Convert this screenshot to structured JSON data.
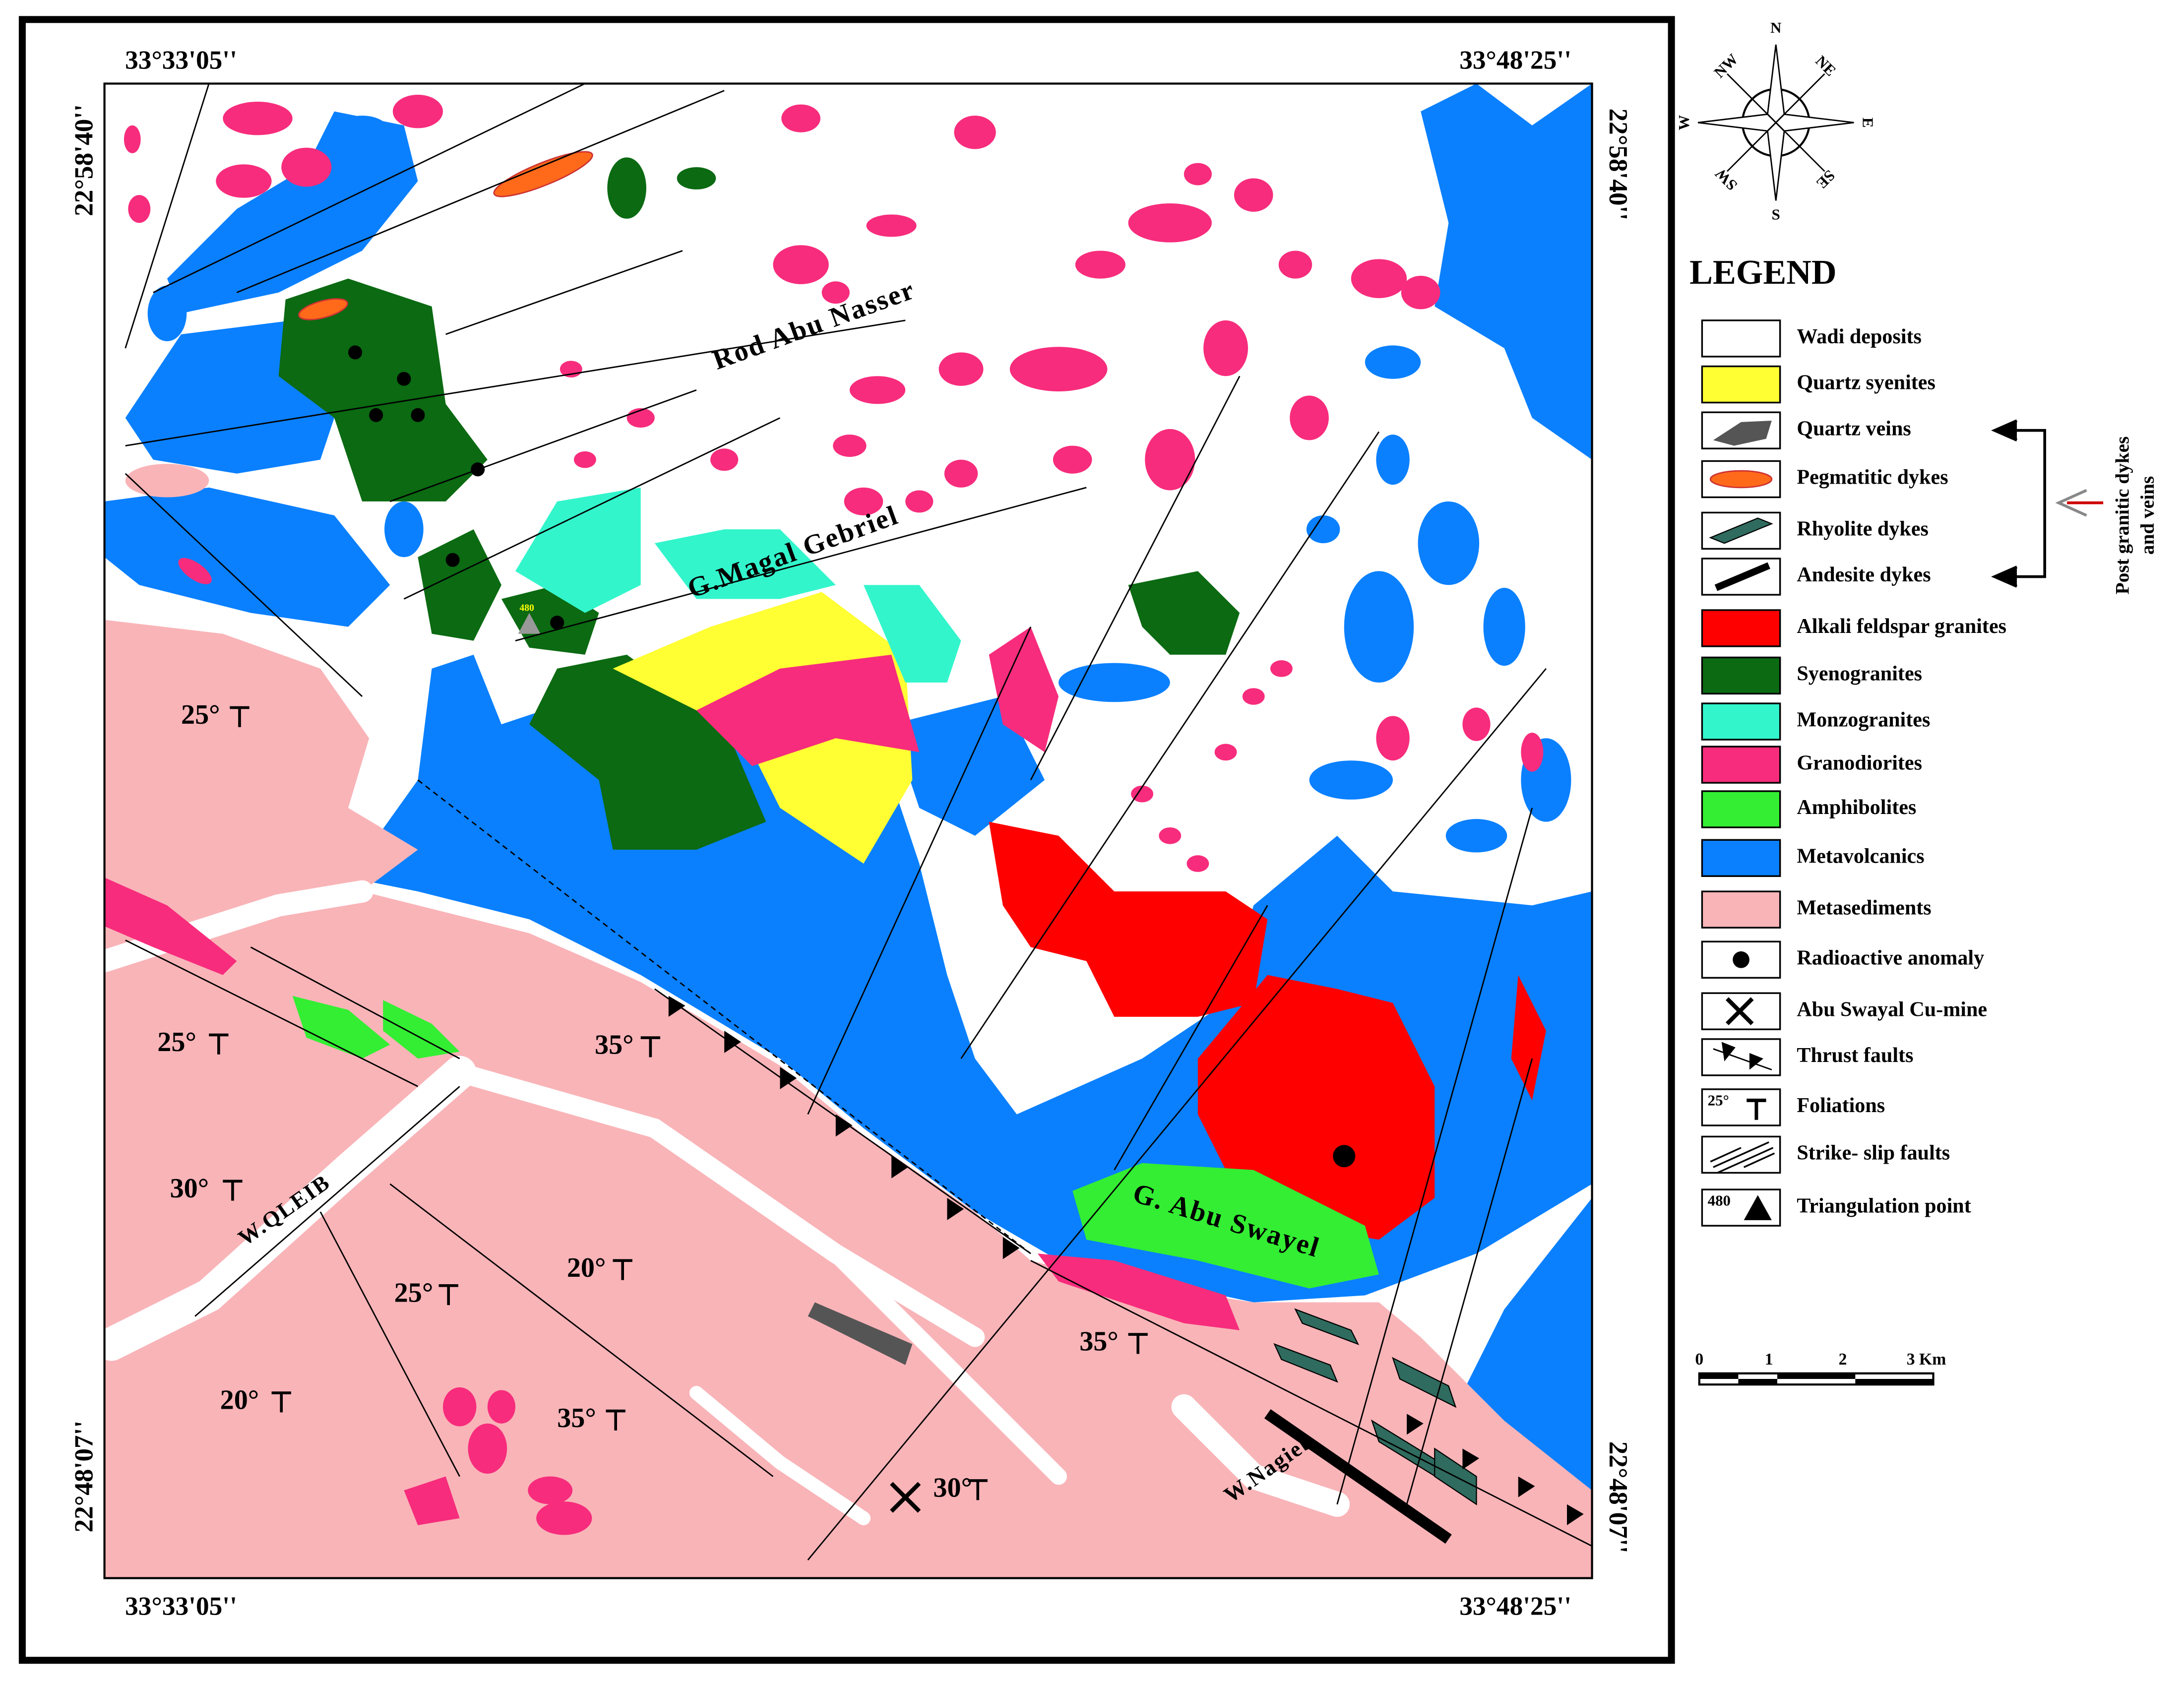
{
  "map": {
    "coordinates": {
      "top_left": "33°33'05''",
      "top_right": "33°48'25''",
      "bottom_left": "33°33'05''",
      "bottom_right": "33°48'25''",
      "left_top": "22°58'40''",
      "left_bottom": "22°48'07''",
      "right_top": "22°58'40''",
      "right_bottom": "22°48'07''"
    },
    "place_labels": [
      "Rod Abu Nasser",
      "G.Magal Gebriel",
      "G. Abu Swayel",
      "W.QLEIB",
      "W.Nagieb"
    ],
    "foliations": [
      "25°",
      "25°",
      "30°",
      "25°",
      "20°",
      "20°",
      "35°",
      "35°",
      "35°",
      "30°"
    ],
    "triangulation_point": "480"
  },
  "compass": [
    "N",
    "NE",
    "E",
    "SE",
    "S",
    "SW",
    "W",
    "NW"
  ],
  "legend": {
    "title": "LEGEND",
    "items": [
      {
        "label": "Wadi deposits",
        "color": "#ffffff"
      },
      {
        "label": "Quartz syenites",
        "color": "#ffff33"
      },
      {
        "label": "Quartz veins",
        "color": "#ffffff"
      },
      {
        "label": "Pegmatitic dykes",
        "color": "#ffffff"
      },
      {
        "label": "Rhyolite dykes",
        "color": "#ffffff"
      },
      {
        "label": "Andesite dykes",
        "color": "#ffffff"
      },
      {
        "label": "Alkali feldspar granites",
        "color": "#ff0000"
      },
      {
        "label": "Syenogranites",
        "color": "#0b6a12"
      },
      {
        "label": "Monzogranites",
        "color": "#33f5cc"
      },
      {
        "label": "Granodiorites",
        "color": "#f72c7c"
      },
      {
        "label": "Amphibolites",
        "color": "#33ee33"
      },
      {
        "label": "Metavolcanics",
        "color": "#0a80ff"
      },
      {
        "label": "Metasediments",
        "color": "#f9b4b8"
      },
      {
        "label": "Radioactive anomaly",
        "color": "#ffffff"
      },
      {
        "label": "Abu Swayal Cu-mine",
        "color": "#ffffff"
      },
      {
        "label": "Thrust faults",
        "color": "#ffffff"
      },
      {
        "label": "Foliations",
        "color": "#ffffff",
        "symbol_text": "25°"
      },
      {
        "label": "Strike- slip faults",
        "color": "#ffffff"
      },
      {
        "label": "Triangulation point",
        "color": "#ffffff",
        "symbol_text": "480"
      }
    ],
    "bracket_label": [
      "Post granitic dykes",
      "and veins"
    ]
  },
  "scale_bar": {
    "labels": [
      "0",
      "1",
      "2",
      "3 Km"
    ]
  }
}
